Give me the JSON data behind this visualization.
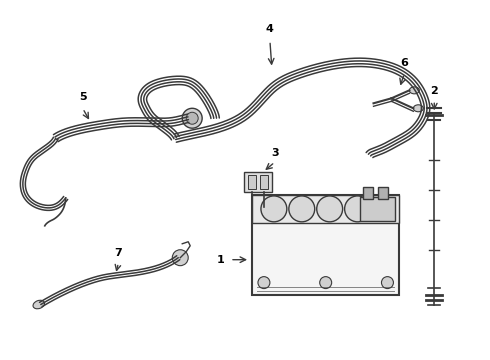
{
  "background_color": "#ffffff",
  "line_color": "#3a3a3a",
  "label_color": "#000000",
  "figsize": [
    4.9,
    3.6
  ],
  "dpi": 100
}
